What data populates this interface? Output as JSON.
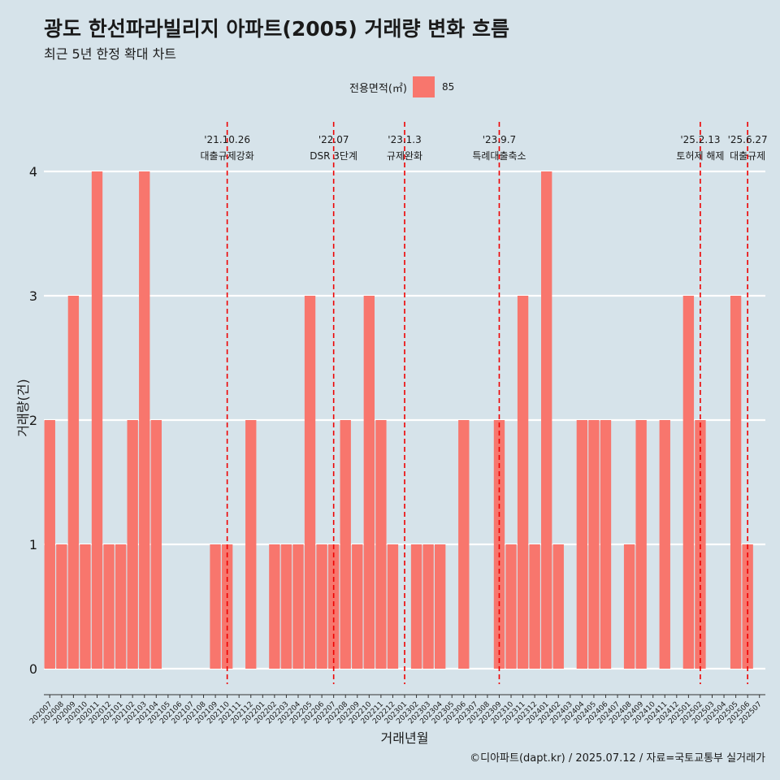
{
  "title": "광도 한선파라빌리지 아파트(2005) 거래량 변화 흐름",
  "subtitle": "최근 5년 한정 확대 차트",
  "legend": {
    "title": "전용면적(㎡)",
    "label": "85",
    "color": "#f8766d"
  },
  "footer": "©디아파트(dapt.kr) / 2025.07.12 / 자료=국토교통부 실거래가",
  "chart_data": {
    "type": "bar",
    "xlabel": "거래년월",
    "ylabel": "거래량(건)",
    "ylim": [
      0,
      4
    ],
    "yticks": [
      0,
      1,
      2,
      3,
      4
    ],
    "grid": true,
    "legend_position": "top",
    "categories": [
      "202007",
      "202008",
      "202009",
      "202010",
      "202011",
      "202012",
      "202101",
      "202102",
      "202103",
      "202104",
      "202105",
      "202106",
      "202107",
      "202108",
      "202109",
      "202110",
      "202111",
      "202112",
      "202201",
      "202202",
      "202203",
      "202204",
      "202205",
      "202206",
      "202207",
      "202208",
      "202209",
      "202210",
      "202211",
      "202212",
      "202301",
      "202302",
      "202303",
      "202304",
      "202305",
      "202306",
      "202307",
      "202308",
      "202309",
      "202310",
      "202311",
      "202312",
      "202401",
      "202402",
      "202403",
      "202404",
      "202405",
      "202406",
      "202407",
      "202408",
      "202409",
      "202410",
      "202411",
      "202412",
      "202501",
      "202502",
      "202503",
      "202504",
      "202505",
      "202506",
      "202507"
    ],
    "series": [
      {
        "name": "85",
        "values": [
          2,
          1,
          3,
          1,
          4,
          1,
          1,
          2,
          4,
          2,
          0,
          0,
          0,
          0,
          1,
          1,
          0,
          2,
          0,
          1,
          1,
          1,
          3,
          1,
          1,
          2,
          1,
          3,
          2,
          1,
          0,
          1,
          1,
          1,
          0,
          2,
          0,
          0,
          2,
          1,
          3,
          1,
          4,
          1,
          0,
          2,
          2,
          2,
          0,
          1,
          2,
          0,
          2,
          0,
          3,
          2,
          0,
          0,
          3,
          1,
          0
        ]
      }
    ],
    "annotations": [
      {
        "date": "'21.10.26",
        "text": "대출규제강화",
        "x": "202110"
      },
      {
        "date": "'22.07",
        "text": "DSR 3단계",
        "x": "202207"
      },
      {
        "date": "'23.1.3",
        "text": "규제완화",
        "x": "202301"
      },
      {
        "date": "'23.9.7",
        "text": "특례대출축소",
        "x": "202309"
      },
      {
        "date": "'25.2.13",
        "text": "토허제 해제",
        "x": "202502"
      },
      {
        "date": "'25.6.27",
        "text": "대출규제",
        "x": "202506"
      }
    ]
  }
}
